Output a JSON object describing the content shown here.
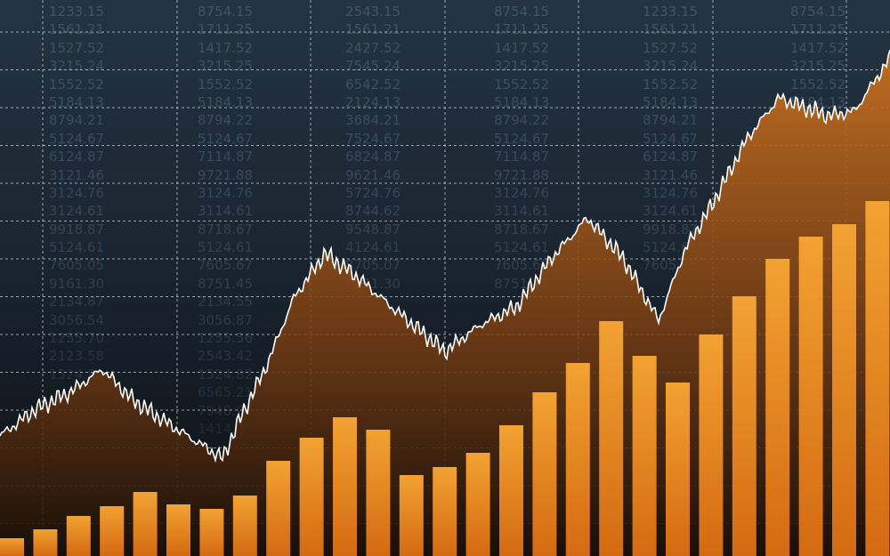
{
  "colors": {
    "background_top": "#243442",
    "background_bottom": "#0c1014",
    "bar_top": "#f2a232",
    "bar_bottom": "#d46a12",
    "area": "#c8701e",
    "line": "#ffffff",
    "grid": "#d0d8e0",
    "numbers": "#3f5566"
  },
  "number_columns": [
    [
      "1233.15",
      "1561.21",
      "1527.52",
      "3215.24",
      "1552.52",
      "5184.13",
      "8794.21",
      "5124.67",
      "6124.87",
      "3121.46",
      "3124.76",
      "3124.61",
      "9918.87",
      "5124.61",
      "7605.05",
      "9161.30",
      "2134.87",
      "3056.54",
      "1255.70",
      "2123.58",
      "1524.82"
    ],
    [
      "8754.15",
      "1711.25",
      "1417.52",
      "3215.25",
      "1552.52",
      "5184.13",
      "8794.22",
      "5124.67",
      "7114.87",
      "9721.88",
      "3124.76",
      "3114.61",
      "8718.67",
      "5124.61",
      "7605.67",
      "8751.45",
      "2134.55",
      "3056.87",
      "1255.56",
      "2543.42",
      "1524.82",
      "6565.21",
      "7948.99",
      "1414.6"
    ],
    [
      "2543.15",
      "1561.21",
      "2427.52",
      "7545.24",
      "6542.52",
      "2124.13",
      "3684.21",
      "7524.67",
      "6824.87",
      "9621.46",
      "5724.76",
      "8744.62",
      "9548.87",
      "4124.61",
      "8705.07",
      "9161.30"
    ],
    [
      "8754.15",
      "1711.25",
      "1417.52",
      "3215.25",
      "1552.52",
      "5184.13",
      "8794.22",
      "5124.67",
      "7114.87",
      "9721.88",
      "3124.76",
      "3114.61",
      "8718.67",
      "5124.61",
      "7605.67",
      "8751.45"
    ],
    [
      "1233.15",
      "1561.21",
      "1527.52",
      "3215.24",
      "1552.52",
      "5184.13",
      "8794.21",
      "5124.67",
      "6124.87",
      "3121.46",
      "3124.76",
      "3124.61",
      "9918.87",
      "5124.61",
      "7605.05"
    ],
    [
      "8754.15",
      "1711.25",
      "1417.52",
      "3215.25",
      "1552.52",
      "5184.13"
    ]
  ],
  "chart_data": {
    "type": "bar+area",
    "grid": true,
    "title": "",
    "xlabel": "",
    "ylabel": "",
    "ylim": [
      0,
      625
    ],
    "bars": {
      "values": [
        20,
        30,
        45,
        56,
        72,
        58,
        53,
        68,
        107,
        133,
        156,
        142,
        91,
        100,
        116,
        147,
        184,
        217,
        264,
        225,
        195,
        249,
        292,
        334,
        359,
        373,
        399
      ]
    },
    "line": {
      "x": [
        0,
        40,
        80,
        115,
        150,
        195,
        250,
        270,
        300,
        330,
        365,
        400,
        440,
        500,
        540,
        580,
        620,
        660,
        700,
        740,
        770,
        800,
        840,
        875,
        930,
        960,
        1000
      ],
      "values": [
        135,
        165,
        185,
        210,
        175,
        145,
        110,
        155,
        215,
        290,
        340,
        315,
        280,
        230,
        260,
        280,
        335,
        380,
        335,
        265,
        345,
        395,
        470,
        515,
        495,
        500,
        560
      ]
    }
  }
}
